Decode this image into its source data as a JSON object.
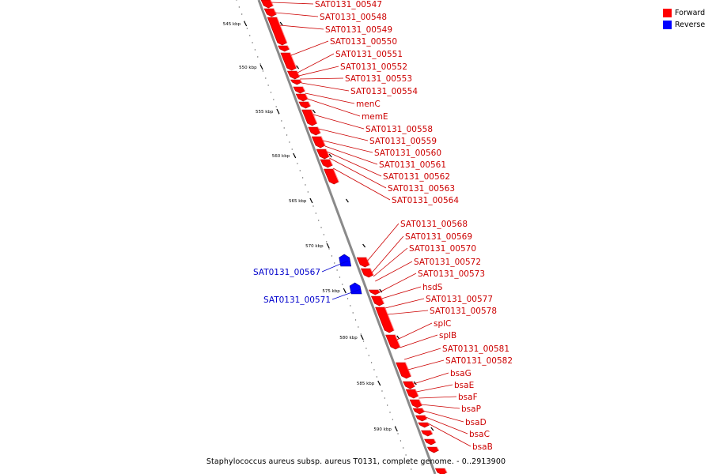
{
  "legend": [
    {
      "label": "Forward",
      "color": "#ff0000"
    },
    {
      "label": "Reverse",
      "color": "#0000ff"
    }
  ],
  "caption": "Staphylococcus aureus subsp. aureus T0131, complete genome. - 0..2913900",
  "colors": {
    "forward": "#ff0000",
    "reverse": "#0000ff",
    "forward_label": "#cc0000",
    "reverse_label": "#0000cc",
    "backbone": "#888888"
  },
  "ticks": [
    "545 kbp",
    "550 kbp",
    "555 kbp",
    "560 kbp",
    "565 kbp",
    "570 kbp",
    "575 kbp",
    "580 kbp",
    "585 kbp",
    "590 kbp"
  ],
  "forward_genes": [
    "SAT0131_00547",
    "SAT0131_00548",
    "SAT0131_00549",
    "SAT0131_00550",
    "SAT0131_00551",
    "SAT0131_00552",
    "SAT0131_00553",
    "SAT0131_00554",
    "menC",
    "memE",
    "SAT0131_00558",
    "SAT0131_00559",
    "SAT0131_00560",
    "SAT0131_00561",
    "SAT0131_00562",
    "SAT0131_00563",
    "SAT0131_00564",
    "SAT0131_00568",
    "SAT0131_00569",
    "SAT0131_00570",
    "SAT0131_00572",
    "SAT0131_00573",
    "hsdS",
    "SAT0131_00577",
    "SAT0131_00578",
    "splC",
    "splB",
    "SAT0131_00581",
    "SAT0131_00582",
    "bsaG",
    "bsaE",
    "bsaF",
    "bsaP",
    "bsaD",
    "bsaC",
    "bsaB"
  ],
  "reverse_genes": [
    "SAT0131_00567",
    "SAT0131_00571"
  ]
}
